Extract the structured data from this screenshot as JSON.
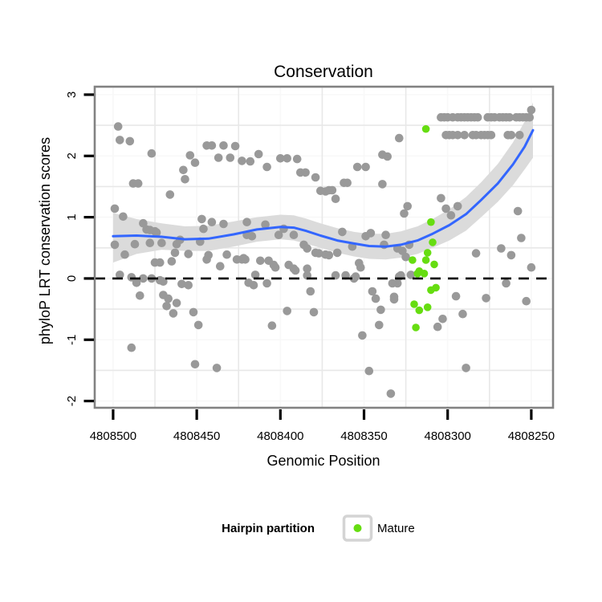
{
  "title": "Conservation",
  "axes": {
    "x_label": "Genomic Position",
    "y_label": "phyloP LRT conservation scores",
    "x_ticks": [
      4808500,
      4808450,
      4808400,
      4808350,
      4808300,
      4808250
    ],
    "y_ticks": [
      3,
      2,
      1,
      0,
      -1,
      -2
    ],
    "x_domain": [
      4808511,
      4808237
    ],
    "y_domain": [
      -2.11,
      3.13
    ]
  },
  "legend": {
    "title": "Hairpin partition",
    "items": [
      {
        "label": "Mature",
        "color": "#66DD11"
      }
    ]
  },
  "colors": {
    "background_points": "#999999",
    "mature_points": "#66DD11",
    "smooth_line": "#3366FF",
    "confidence_band": "#DBDBDB",
    "reference_line": "#000000",
    "panel_border": "#828282",
    "grid_minor": "#E8E8E8",
    "grid_major": "#F8F8F8",
    "tick": "#000000",
    "legend_key_border": "#D4D4D4"
  },
  "chart_data": {
    "type": "scatter",
    "title": "Conservation",
    "xlabel": "Genomic Position",
    "ylabel": "phyloP LRT conservation scores",
    "x_reversed": true,
    "x_domain": [
      4808511,
      4808237
    ],
    "y_domain": [
      -2.11,
      3.13
    ],
    "x_ticks": [
      4808500,
      4808450,
      4808400,
      4808350,
      4808300,
      4808250
    ],
    "y_ticks": [
      3,
      2,
      1,
      0,
      -1,
      -2
    ],
    "grid": "minor",
    "legend_position": "bottom",
    "series": [
      {
        "name": "background",
        "color": "#999999",
        "points": [
          [
            4808497,
            2.48
          ],
          [
            4808496,
            2.26
          ],
          [
            4808490,
            2.24
          ],
          [
            4808477,
            2.04
          ],
          [
            4808454,
            2.01
          ],
          [
            4808451,
            1.89
          ],
          [
            4808458,
            1.77
          ],
          [
            4808457,
            1.62
          ],
          [
            4808488,
            1.55
          ],
          [
            4808485,
            1.55
          ],
          [
            4808466,
            1.37
          ],
          [
            4808499,
            1.14
          ],
          [
            4808494,
            1.01
          ],
          [
            4808444,
            2.17
          ],
          [
            4808441,
            2.17
          ],
          [
            4808434,
            2.17
          ],
          [
            4808427,
            2.16
          ],
          [
            4808437,
            1.97
          ],
          [
            4808430,
            1.97
          ],
          [
            4808423,
            1.92
          ],
          [
            4808418,
            1.91
          ],
          [
            4808413,
            2.03
          ],
          [
            4808408,
            1.82
          ],
          [
            4808400,
            1.96
          ],
          [
            4808396,
            1.96
          ],
          [
            4808390,
            1.95
          ],
          [
            4808388,
            1.73
          ],
          [
            4808385,
            1.73
          ],
          [
            4808379,
            1.65
          ],
          [
            4808376,
            1.43
          ],
          [
            4808373,
            1.42
          ],
          [
            4808371,
            1.44
          ],
          [
            4808369,
            1.44
          ],
          [
            4808367,
            1.3
          ],
          [
            4808362,
            1.56
          ],
          [
            4808360,
            1.56
          ],
          [
            4808354,
            1.82
          ],
          [
            4808349,
            1.82
          ],
          [
            4808339,
            2.02
          ],
          [
            4808336,
            1.99
          ],
          [
            4808339,
            1.54
          ],
          [
            4808329,
            2.29
          ],
          [
            4808250,
            2.75
          ],
          [
            4808304,
            2.63
          ],
          [
            4808302,
            2.63
          ],
          [
            4808300,
            2.63
          ],
          [
            4808297,
            2.63
          ],
          [
            4808294,
            2.63
          ],
          [
            4808292,
            2.63
          ],
          [
            4808290,
            2.63
          ],
          [
            4808288,
            2.63
          ],
          [
            4808286,
            2.63
          ],
          [
            4808284,
            2.63
          ],
          [
            4808282,
            2.63
          ],
          [
            4808276,
            2.63
          ],
          [
            4808274,
            2.63
          ],
          [
            4808272,
            2.63
          ],
          [
            4808269,
            2.63
          ],
          [
            4808267,
            2.63
          ],
          [
            4808265,
            2.63
          ],
          [
            4808263,
            2.63
          ],
          [
            4808259,
            2.63
          ],
          [
            4808257,
            2.63
          ],
          [
            4808255,
            2.63
          ],
          [
            4808253,
            2.63
          ],
          [
            4808251,
            2.63
          ],
          [
            4808301,
            2.34
          ],
          [
            4808299,
            2.34
          ],
          [
            4808297,
            2.34
          ],
          [
            4808294,
            2.34
          ],
          [
            4808290,
            2.34
          ],
          [
            4808285,
            2.34
          ],
          [
            4808283,
            2.34
          ],
          [
            4808280,
            2.34
          ],
          [
            4808278,
            2.34
          ],
          [
            4808276,
            2.34
          ],
          [
            4808274,
            2.34
          ],
          [
            4808264,
            2.34
          ],
          [
            4808262,
            2.34
          ],
          [
            4808257,
            2.34
          ],
          [
            4808304,
            1.31
          ],
          [
            4808301,
            1.14
          ],
          [
            4808298,
            1.03
          ],
          [
            4808294,
            1.18
          ],
          [
            4808258,
            1.1
          ],
          [
            4808324,
            1.18
          ],
          [
            4808326,
            1.06
          ],
          [
            4808499,
            0.55
          ],
          [
            4808493,
            0.39
          ],
          [
            4808487,
            0.56
          ],
          [
            4808482,
            0.9
          ],
          [
            4808480,
            0.8
          ],
          [
            4808478,
            0.79
          ],
          [
            4808478,
            0.58
          ],
          [
            4808475,
            0.77
          ],
          [
            4808474,
            0.75
          ],
          [
            4808471,
            0.58
          ],
          [
            4808463,
            0.42
          ],
          [
            4808462,
            0.56
          ],
          [
            4808460,
            0.63
          ],
          [
            4808455,
            0.4
          ],
          [
            4808448,
            0.6
          ],
          [
            4808447,
            0.97
          ],
          [
            4808446,
            0.81
          ],
          [
            4808444,
            0.31
          ],
          [
            4808443,
            0.38
          ],
          [
            4808441,
            0.92
          ],
          [
            4808436,
            0.2
          ],
          [
            4808434,
            0.89
          ],
          [
            4808432,
            0.39
          ],
          [
            4808426,
            0.31
          ],
          [
            4808422,
            0.33
          ],
          [
            4808420,
            0.92
          ],
          [
            4808417,
            0.69
          ],
          [
            4808475,
            0.26
          ],
          [
            4808472,
            0.26
          ],
          [
            4808465,
            0.28
          ],
          [
            4808496,
            0.06
          ],
          [
            4808489,
            0.02
          ],
          [
            4808486,
            -0.07
          ],
          [
            4808482,
            0.0
          ],
          [
            4808477,
            0.0
          ],
          [
            4808472,
            -0.03
          ],
          [
            4808470,
            -0.05
          ],
          [
            4808459,
            -0.09
          ],
          [
            4808455,
            -0.11
          ],
          [
            4808484,
            -0.28
          ],
          [
            4808470,
            -0.27
          ],
          [
            4808467,
            -0.33
          ],
          [
            4808468,
            -0.45
          ],
          [
            4808462,
            -0.4
          ],
          [
            4808464,
            -0.57
          ],
          [
            4808452,
            -0.55
          ],
          [
            4808449,
            -0.76
          ],
          [
            4808489,
            -1.13
          ],
          [
            4808451,
            -1.4
          ],
          [
            4808438,
            -1.46
          ],
          [
            4808423,
            0.31
          ],
          [
            4808421,
            0.31
          ],
          [
            4808412,
            0.29
          ],
          [
            4808407,
            0.29
          ],
          [
            4808404,
            0.22
          ],
          [
            4808403,
            0.18
          ],
          [
            4808419,
            -0.07
          ],
          [
            4808416,
            -0.11
          ],
          [
            4808415,
            0.06
          ],
          [
            4808408,
            -0.08
          ],
          [
            4808395,
            0.22
          ],
          [
            4808392,
            0.16
          ],
          [
            4808391,
            0.13
          ],
          [
            4808384,
            0.16
          ],
          [
            4808384,
            0.05
          ],
          [
            4808382,
            -0.21
          ],
          [
            4808396,
            -0.53
          ],
          [
            4808380,
            -0.55
          ],
          [
            4808405,
            -0.77
          ],
          [
            4808367,
            0.05
          ],
          [
            4808361,
            0.05
          ],
          [
            4808356,
            0.0
          ],
          [
            4808355,
            0.03
          ],
          [
            4808353,
            0.25
          ],
          [
            4808352,
            0.18
          ],
          [
            4808345,
            -0.21
          ],
          [
            4808343,
            -0.33
          ],
          [
            4808340,
            -0.51
          ],
          [
            4808332,
            -0.3
          ],
          [
            4808341,
            -0.76
          ],
          [
            4808351,
            -0.93
          ],
          [
            4808347,
            -1.51
          ],
          [
            4808334,
            -1.88
          ],
          [
            4808330,
            -0.08
          ],
          [
            4808329,
            0.03
          ],
          [
            4808420,
            0.71
          ],
          [
            4808409,
            0.88
          ],
          [
            4808401,
            0.71
          ],
          [
            4808398,
            0.81
          ],
          [
            4808392,
            0.71
          ],
          [
            4808386,
            0.55
          ],
          [
            4808384,
            0.49
          ],
          [
            4808379,
            0.42
          ],
          [
            4808377,
            0.41
          ],
          [
            4808373,
            0.39
          ],
          [
            4808371,
            0.38
          ],
          [
            4808366,
            0.42
          ],
          [
            4808363,
            0.76
          ],
          [
            4808357,
            0.52
          ],
          [
            4808349,
            0.69
          ],
          [
            4808346,
            0.74
          ],
          [
            4808338,
            0.55
          ],
          [
            4808337,
            0.71
          ],
          [
            4808330,
            0.49
          ],
          [
            4808327,
            0.45
          ],
          [
            4808325,
            0.35
          ],
          [
            4808323,
            0.55
          ],
          [
            4808328,
            0.05
          ],
          [
            4808322,
            0.06
          ],
          [
            4808333,
            -0.08
          ],
          [
            4808332,
            -0.34
          ],
          [
            4808283,
            0.41
          ],
          [
            4808268,
            0.49
          ],
          [
            4808262,
            0.38
          ],
          [
            4808256,
            0.66
          ],
          [
            4808250,
            0.18
          ],
          [
            4808265,
            -0.08
          ],
          [
            4808295,
            -0.29
          ],
          [
            4808277,
            -0.32
          ],
          [
            4808253,
            -0.37
          ],
          [
            4808291,
            -0.58
          ],
          [
            4808303,
            -0.66
          ],
          [
            4808306,
            -0.79
          ],
          [
            4808289,
            -1.46
          ]
        ]
      },
      {
        "name": "Mature",
        "color": "#66DD11",
        "points": [
          [
            4808313,
            2.44
          ],
          [
            4808310,
            0.92
          ],
          [
            4808309,
            0.59
          ],
          [
            4808312,
            0.42
          ],
          [
            4808321,
            0.3
          ],
          [
            4808313,
            0.3
          ],
          [
            4808308,
            0.23
          ],
          [
            4808317,
            0.12
          ],
          [
            4808318,
            0.08
          ],
          [
            4808314,
            0.08
          ],
          [
            4808307,
            -0.15
          ],
          [
            4808310,
            -0.19
          ],
          [
            4808320,
            -0.42
          ],
          [
            4808317,
            -0.52
          ],
          [
            4808312,
            -0.47
          ],
          [
            4808319,
            -0.8
          ]
        ]
      }
    ],
    "smooth": {
      "color": "#3366FF",
      "band_color": "#DBDBDB",
      "x": [
        4808500,
        4808486,
        4808471,
        4808457,
        4808443,
        4808428,
        4808414,
        4808400,
        4808392,
        4808385,
        4808376,
        4808366,
        4808356,
        4808347,
        4808337,
        4808328,
        4808318,
        4808309,
        4808299,
        4808289,
        4808280,
        4808270,
        4808261,
        4808254,
        4808249
      ],
      "y": [
        0.69,
        0.7,
        0.68,
        0.64,
        0.65,
        0.72,
        0.8,
        0.84,
        0.83,
        0.78,
        0.7,
        0.62,
        0.57,
        0.53,
        0.52,
        0.55,
        0.62,
        0.73,
        0.87,
        1.05,
        1.28,
        1.55,
        1.86,
        2.15,
        2.42
      ],
      "upper": [
        1.07,
        0.97,
        0.9,
        0.85,
        0.86,
        0.93,
        1.0,
        1.04,
        1.03,
        0.98,
        0.9,
        0.82,
        0.76,
        0.73,
        0.73,
        0.77,
        0.85,
        0.97,
        1.13,
        1.33,
        1.57,
        1.87,
        2.22,
        2.56,
        2.87
      ],
      "lower": [
        0.26,
        0.4,
        0.47,
        0.45,
        0.45,
        0.52,
        0.6,
        0.64,
        0.62,
        0.57,
        0.5,
        0.42,
        0.36,
        0.32,
        0.31,
        0.34,
        0.4,
        0.5,
        0.62,
        0.78,
        1.0,
        1.25,
        1.52,
        1.78,
        1.97
      ]
    },
    "reference_line": {
      "y": 0,
      "style": "dashed",
      "color": "#000000"
    }
  }
}
